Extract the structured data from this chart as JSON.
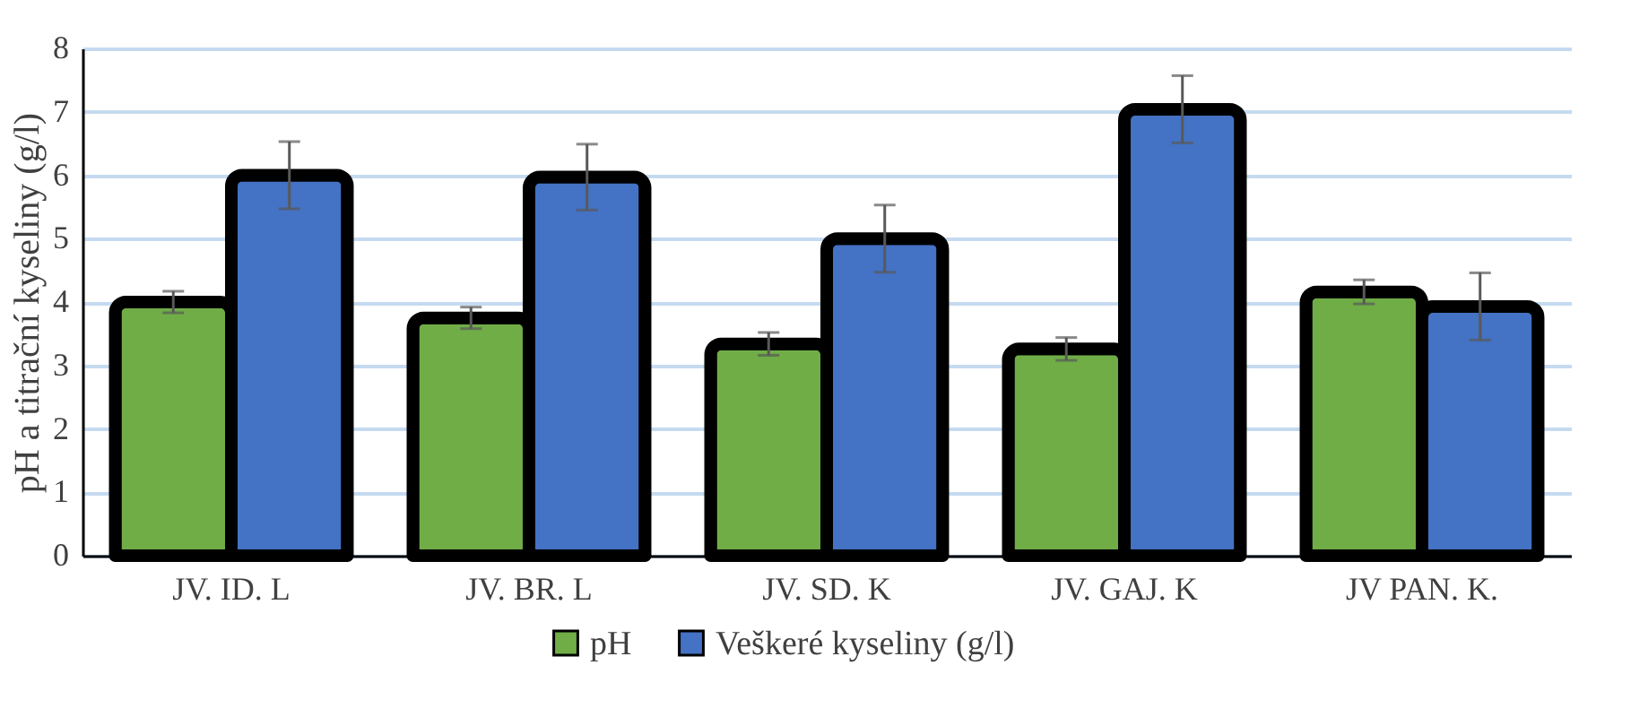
{
  "chart_data": {
    "type": "bar",
    "ylabel": "pH a titrační kyseliny (g/l)",
    "categories": [
      "JV. ID. L",
      "JV. BR. L",
      "JV. SD. K",
      "JV. GAJ. K",
      "JV PAN. K."
    ],
    "series": [
      {
        "name": "pH",
        "color": "#70ad47",
        "values": [
          4.0,
          3.75,
          3.34,
          3.26,
          4.16
        ],
        "errors": [
          0.17,
          0.17,
          0.18,
          0.18,
          0.19
        ]
      },
      {
        "name": "Veškeré kyseliny (g/l)",
        "color": "#4472c4",
        "values": [
          6.0,
          5.97,
          5.0,
          7.04,
          3.93
        ],
        "errors": [
          0.53,
          0.52,
          0.53,
          0.53,
          0.53
        ]
      }
    ],
    "ylim": [
      0,
      8
    ],
    "yticks": [
      0,
      1,
      2,
      3,
      4,
      5,
      6,
      7,
      8
    ],
    "grid": "y",
    "legend": "bottom"
  }
}
